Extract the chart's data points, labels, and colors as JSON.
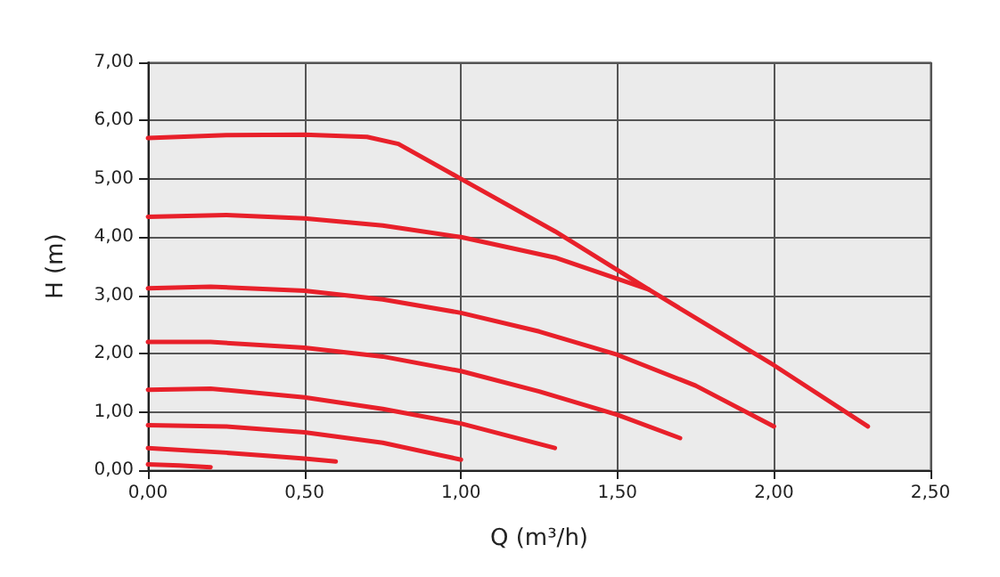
{
  "chart_data": {
    "type": "line",
    "xlabel": "Q (m³/h)",
    "ylabel": "H (m)",
    "xlim": [
      0,
      2.5
    ],
    "ylim": [
      0,
      7
    ],
    "xticks": [
      {
        "value": 0,
        "label": "0,00"
      },
      {
        "value": 0.5,
        "label": "0,50"
      },
      {
        "value": 1,
        "label": "1,00"
      },
      {
        "value": 1.5,
        "label": "1,50"
      },
      {
        "value": 2,
        "label": "2,00"
      },
      {
        "value": 2.5,
        "label": "2,50"
      }
    ],
    "yticks": [
      {
        "value": 0,
        "label": "0,00"
      },
      {
        "value": 1,
        "label": "1,00"
      },
      {
        "value": 2,
        "label": "2,00"
      },
      {
        "value": 3,
        "label": "3,00"
      },
      {
        "value": 4,
        "label": "4,00"
      },
      {
        "value": 5,
        "label": "5,00"
      },
      {
        "value": 6,
        "label": "6,00"
      },
      {
        "value": 7,
        "label": "7,00"
      }
    ],
    "grid": true,
    "marker": "none",
    "line_style": "solid",
    "series": [
      {
        "color": "#e8202a",
        "x": [
          0,
          0.25,
          0.5,
          0.7,
          0.8,
          1.0,
          1.3,
          1.6,
          2.0,
          2.3
        ],
        "values": [
          5.7,
          5.75,
          5.76,
          5.72,
          5.6,
          5.0,
          4.1,
          3.1,
          1.8,
          0.75
        ]
      },
      {
        "color": "#e8202a",
        "x": [
          0,
          0.25,
          0.5,
          0.75,
          1.0,
          1.3,
          1.6
        ],
        "values": [
          4.35,
          4.38,
          4.32,
          4.2,
          4.0,
          3.65,
          3.1
        ]
      },
      {
        "color": "#e8202a",
        "x": [
          0,
          0.2,
          0.5,
          0.75,
          1.0,
          1.25,
          1.5,
          1.75,
          2.0
        ],
        "values": [
          3.12,
          3.15,
          3.08,
          2.93,
          2.7,
          2.38,
          1.98,
          1.45,
          0.75
        ]
      },
      {
        "color": "#e8202a",
        "x": [
          0,
          0.2,
          0.5,
          0.75,
          1.0,
          1.25,
          1.5,
          1.7
        ],
        "values": [
          2.2,
          2.2,
          2.1,
          1.95,
          1.7,
          1.35,
          0.95,
          0.55
        ]
      },
      {
        "color": "#e8202a",
        "x": [
          0,
          0.2,
          0.5,
          0.75,
          1.0,
          1.3
        ],
        "values": [
          1.38,
          1.4,
          1.25,
          1.05,
          0.8,
          0.38
        ]
      },
      {
        "color": "#e8202a",
        "x": [
          0,
          0.25,
          0.5,
          0.75,
          1.0
        ],
        "values": [
          0.77,
          0.75,
          0.65,
          0.47,
          0.18
        ]
      },
      {
        "color": "#e8202a",
        "x": [
          0,
          0.25,
          0.5,
          0.6
        ],
        "values": [
          0.38,
          0.3,
          0.2,
          0.15
        ]
      },
      {
        "color": "#e8202a",
        "x": [
          0,
          0.1,
          0.2
        ],
        "values": [
          0.1,
          0.08,
          0.05
        ]
      }
    ]
  }
}
